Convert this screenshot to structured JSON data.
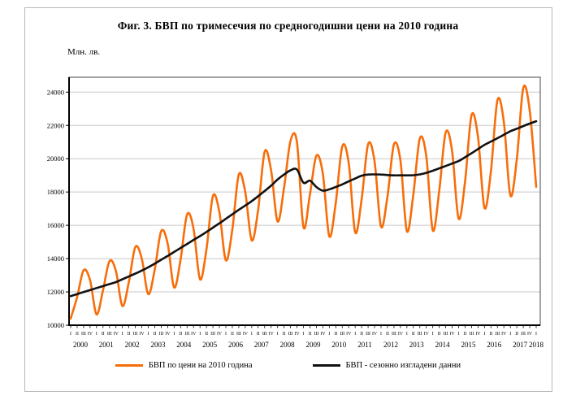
{
  "figure": {
    "title": "Фиг. 3. БВП по тримесечия по средногодишни цени на 2010 година",
    "unit_label": "Млн. лв."
  },
  "legend": [
    {
      "label": "БВП по цени на 2010 година",
      "color": "#F76D0A"
    },
    {
      "label": "БВП - сезонно изгладени данни",
      "color": "#111111"
    }
  ],
  "chart_data": {
    "type": "line",
    "title": "Фиг. 3. БВП по тримесечия по средногодишни цени на 2010 година",
    "ylabel": "Млн. лв.",
    "ylim": [
      10000,
      24000
    ],
    "ytick_step": 2000,
    "yticks": [
      10000,
      12000,
      14000,
      16000,
      18000,
      20000,
      22000,
      24000
    ],
    "grid": true,
    "legend_position": "bottom",
    "x_unit": "quarter",
    "quarter_labels": [
      "I",
      "II",
      "III",
      "IV"
    ],
    "x_years": [
      2000,
      2001,
      2002,
      2003,
      2004,
      2005,
      2006,
      2007,
      2008,
      2009,
      2010,
      2011,
      2012,
      2013,
      2014,
      2015,
      2016,
      2017,
      2018
    ],
    "x_range_note": "2000 Q1 through 2018 Q1, 73 quarterly points",
    "series": [
      {
        "name": "БВП по цени на 2010 година",
        "color": "#F76D0A",
        "smooth": true,
        "values": [
          10400,
          11700,
          13300,
          12700,
          10650,
          12100,
          13850,
          13250,
          11150,
          12600,
          14700,
          14000,
          11870,
          13350,
          15650,
          14900,
          12270,
          13950,
          16650,
          15800,
          12760,
          14550,
          17760,
          16800,
          13900,
          15750,
          19050,
          18000,
          15100,
          16950,
          20420,
          19300,
          16230,
          18250,
          21070,
          21000,
          15900,
          17850,
          20180,
          19100,
          15340,
          17350,
          20740,
          19750,
          15580,
          17550,
          20870,
          19850,
          15930,
          17750,
          20860,
          19900,
          15650,
          17850,
          21220,
          20150,
          15700,
          18050,
          21580,
          20450,
          16400,
          18650,
          22620,
          21300,
          17050,
          19250,
          23510,
          22200,
          17800,
          19950,
          24250,
          22900,
          18310
        ]
      },
      {
        "name": "БВП - сезонно изгладени данни",
        "color": "#111111",
        "smooth": true,
        "values": [
          11750,
          11870,
          11990,
          12110,
          12230,
          12350,
          12470,
          12590,
          12760,
          12930,
          13100,
          13280,
          13480,
          13700,
          13930,
          14160,
          14400,
          14640,
          14880,
          15120,
          15350,
          15600,
          15860,
          16120,
          16390,
          16660,
          16930,
          17190,
          17450,
          17750,
          18060,
          18380,
          18750,
          19050,
          19300,
          19350,
          18560,
          18680,
          18300,
          18080,
          18160,
          18300,
          18460,
          18640,
          18810,
          18980,
          19050,
          19060,
          19050,
          19020,
          19000,
          19000,
          19000,
          19010,
          19060,
          19150,
          19280,
          19420,
          19560,
          19710,
          19860,
          20090,
          20330,
          20580,
          20830,
          21030,
          21230,
          21440,
          21650,
          21800,
          21960,
          22110,
          22250
        ]
      }
    ]
  }
}
